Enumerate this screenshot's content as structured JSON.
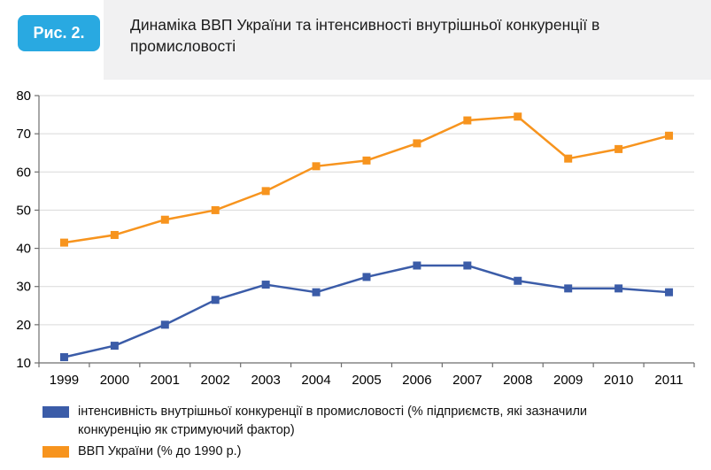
{
  "figure": {
    "badge": "Рис. 2.",
    "title": "Динаміка ВВП України та інтенсивності внутрішньої конкуренції в промисловості"
  },
  "colors": {
    "badge_bg": "#29a9e1",
    "header_bg": "#f1f1f2",
    "grid": "#d9d9d9",
    "axis": "#6e6e6e",
    "tick_label": "#000000"
  },
  "chart_data": {
    "type": "line",
    "title": "Динаміка ВВП України та інтенсивності внутрішньої конкуренції в промисловості",
    "categories": [
      "1999",
      "2000",
      "2001",
      "2002",
      "2003",
      "2004",
      "2005",
      "2006",
      "2007",
      "2008",
      "2009",
      "2010",
      "2011"
    ],
    "series": [
      {
        "name": "інтенсивність внутрішньої конкуренції в промисловості (% підприємств, які зазначили конкуренцію як стримуючий фактор)",
        "color": "#3b5ca8",
        "marker": "square",
        "values": [
          11.5,
          14.5,
          20,
          26.5,
          30.5,
          28.5,
          32.5,
          35.5,
          35.5,
          31.5,
          29.5,
          29.5,
          28.5
        ]
      },
      {
        "name": "ВВП України (% до 1990 р.)",
        "color": "#f7941e",
        "marker": "square",
        "values": [
          41.5,
          43.5,
          47.5,
          50,
          55,
          61.5,
          63,
          67.5,
          73.5,
          74.5,
          63.5,
          66,
          69.5
        ]
      }
    ],
    "ylim": [
      10,
      80
    ],
    "yticks": [
      10,
      20,
      30,
      40,
      50,
      60,
      70,
      80
    ],
    "xlabel": "",
    "ylabel": "",
    "grid": true,
    "legend_position": "bottom"
  }
}
